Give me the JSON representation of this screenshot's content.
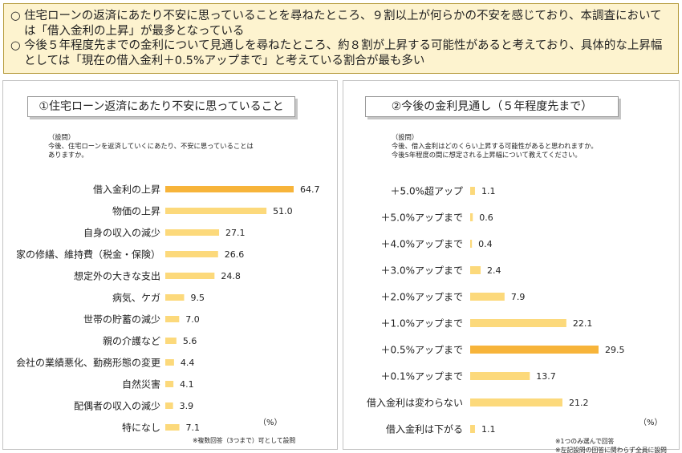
{
  "summary": {
    "line1": "住宅ローンの返済にあたり不安に思っていることを尋ねたところ、９割以上が何らかの不安を感じており、本調査においては「借入金利の上昇」が最多となっている",
    "line2": "今後５年程度先までの金利について見通しを尋ねたところ、約８割が上昇する可能性があると考えており、具体的な上昇幅としては「現在の借入金利＋0.5%アップまで」と考えている割合が最も多い"
  },
  "left": {
    "title": "①住宅ローン返済にあたり不安に思っていること",
    "question_label": "（設問）",
    "question_line1": "今後、住宅ローンを返済していくにあたり、不安に思っていることは",
    "question_line2": "ありますか。",
    "note": "※複数回答（3つまで）可として設問",
    "unit": "（%）"
  },
  "right": {
    "title": "②今後の金利見通し（５年程度先まで）",
    "question_label": "（設問）",
    "question_line1": "今後、借入金利はどのくらい上昇する可能性があると思われますか。",
    "question_line2": "今後5年程度の間に想定される上昇幅について教えてください。",
    "note_line1": "※1つのみ選んで回答",
    "note_line2": "※左記設問の回答に関わらず全員に設問",
    "unit": "（%）"
  },
  "colors": {
    "bar": "#fcd97b",
    "highlight": "#f7b43a",
    "summary_bg": "#fdf3cf"
  },
  "chart_data": [
    {
      "type": "bar",
      "orientation": "horizontal",
      "categories": [
        "借入金利の上昇",
        "物価の上昇",
        "自身の収入の減少",
        "家の修繕、維持費（税金・保険）",
        "想定外の大きな支出",
        "病気、ケガ",
        "世帯の貯蓄の減少",
        "親の介護など",
        "会社の業績悪化、勤務形態の変更",
        "自然災害",
        "配偶者の収入の減少",
        "特になし"
      ],
      "values": [
        64.7,
        51.0,
        27.1,
        26.6,
        24.8,
        9.5,
        7.0,
        5.6,
        4.4,
        4.1,
        3.9,
        7.1
      ],
      "value_labels": [
        "64.7",
        "51.0",
        "27.1",
        "26.6",
        "24.8",
        "9.5",
        "7.0",
        "5.6",
        "4.4",
        "4.1",
        "3.9",
        "7.1"
      ],
      "highlight_index": 0,
      "xlim": [
        0,
        64.7
      ],
      "grid": false
    },
    {
      "type": "bar",
      "orientation": "horizontal",
      "categories": [
        "＋5.0%超アップ",
        "＋5.0%アップまで",
        "＋4.0%アップまで",
        "＋3.0%アップまで",
        "＋2.0%アップまで",
        "＋1.0%アップまで",
        "＋0.5%アップまで",
        "＋0.1%アップまで",
        "借入金利は変わらない",
        "借入金利は下がる"
      ],
      "values": [
        1.1,
        0.6,
        0.4,
        2.4,
        7.9,
        22.1,
        29.5,
        13.7,
        21.2,
        1.1
      ],
      "value_labels": [
        "1.1",
        "0.6",
        "0.4",
        "2.4",
        "7.9",
        "22.1",
        "29.5",
        "13.7",
        "21.2",
        "1.1"
      ],
      "highlight_index": 6,
      "xlim": [
        0,
        29.5
      ],
      "grid": false
    }
  ]
}
